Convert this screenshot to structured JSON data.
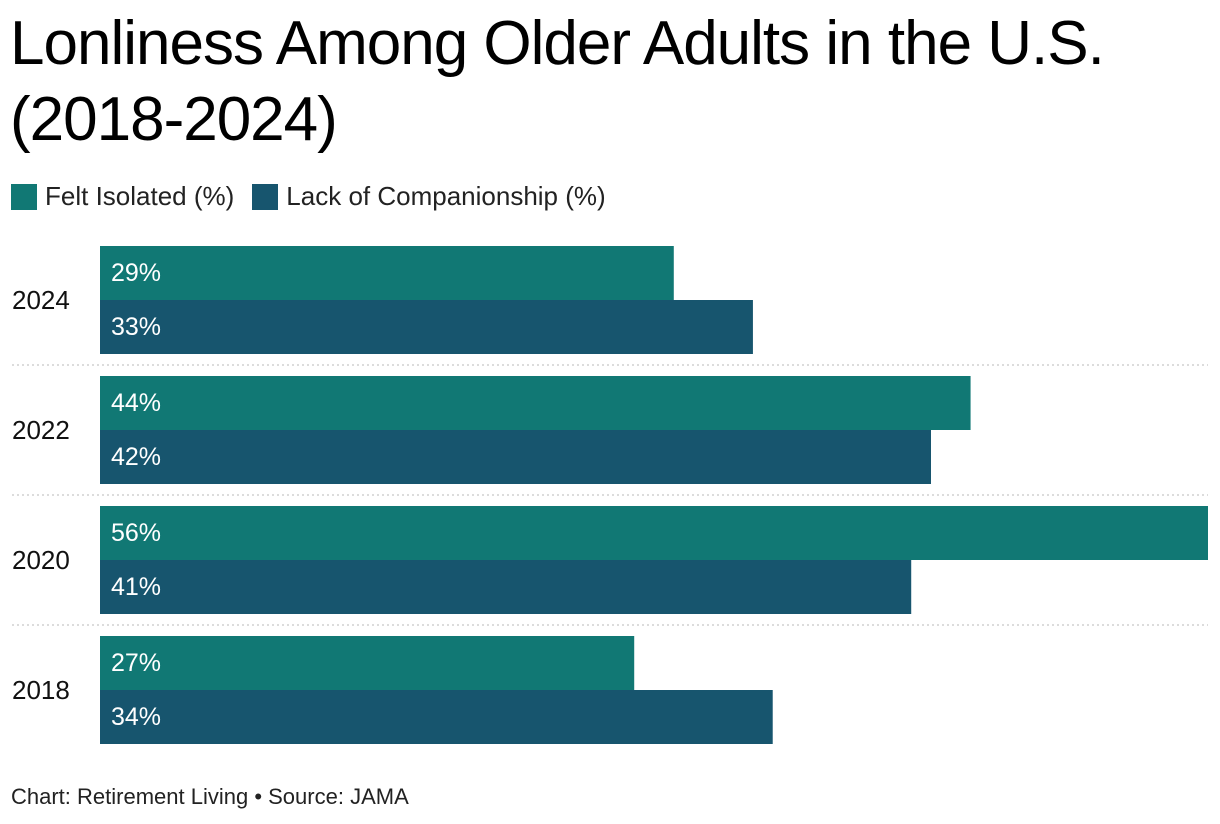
{
  "title": "Lonliness Among Older Adults in the U.S. (2018-2024)",
  "footer": "Chart: Retirement Living • Source: JAMA",
  "colors": {
    "felt_isolated": "#117874",
    "lack_companionship": "#17556E",
    "grid": "#c8c8c8",
    "label": "#ffffff"
  },
  "legend": [
    {
      "label": "Felt Isolated (%)",
      "color": "#117874"
    },
    {
      "label": "Lack of Companionship (%)",
      "color": "#17556E"
    }
  ],
  "chart_data": {
    "type": "bar",
    "orientation": "horizontal",
    "categories": [
      "2024",
      "2022",
      "2020",
      "2018"
    ],
    "series": [
      {
        "name": "Felt Isolated (%)",
        "values": [
          29,
          44,
          56,
          27
        ],
        "labels": [
          "29%",
          "44%",
          "56%",
          "27%"
        ]
      },
      {
        "name": "Lack of Companionship (%)",
        "values": [
          33,
          42,
          41,
          34
        ],
        "labels": [
          "33%",
          "42%",
          "41%",
          "34%"
        ]
      }
    ],
    "xlim": [
      0,
      56
    ],
    "grid": "dotted separators between groups",
    "legend_position": "top-left"
  }
}
